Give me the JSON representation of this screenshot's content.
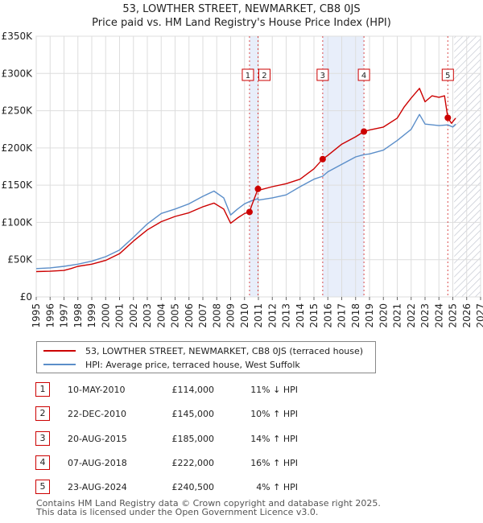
{
  "header": {
    "title_line1": "53, LOWTHER STREET, NEWMARKET, CB8 0JS",
    "title_line2": "Price paid vs. HM Land Registry's House Price Index (HPI)"
  },
  "legend": {
    "property_label": "53, LOWTHER STREET, NEWMARKET, CB8 0JS (terraced house)",
    "hpi_label": "HPI: Average price, terraced house, West Suffolk"
  },
  "sales": [
    {
      "num": "1",
      "date": "10-MAY-2010",
      "price": "£114,000",
      "hpi": "11% ↓ HPI"
    },
    {
      "num": "2",
      "date": "22-DEC-2010",
      "price": "£145,000",
      "hpi": "10% ↑ HPI"
    },
    {
      "num": "3",
      "date": "20-AUG-2015",
      "price": "£185,000",
      "hpi": "14% ↑ HPI"
    },
    {
      "num": "4",
      "date": "07-AUG-2018",
      "price": "£222,000",
      "hpi": "16% ↑ HPI"
    },
    {
      "num": "5",
      "date": "23-AUG-2024",
      "price": "£240,500",
      "hpi": "4% ↑ HPI"
    }
  ],
  "footer": {
    "line1": "Contains HM Land Registry data © Crown copyright and database right 2025.",
    "line2": "This data is licensed under the Open Government Licence v3.0."
  },
  "colors": {
    "property": "#cc0000",
    "hpi": "#5b8ec9",
    "shade": "#e8eefa",
    "grid": "#dddddd"
  },
  "chart_data": {
    "type": "line",
    "title": "Price paid vs. HM Land Registry's House Price Index (HPI)",
    "xlabel": "",
    "ylabel": "",
    "xlim": [
      1995,
      2027
    ],
    "ylim": [
      0,
      350000
    ],
    "x_ticks": [
      1995,
      1996,
      1997,
      1998,
      1999,
      2000,
      2001,
      2002,
      2003,
      2004,
      2005,
      2006,
      2007,
      2008,
      2009,
      2010,
      2011,
      2012,
      2013,
      2014,
      2015,
      2016,
      2017,
      2018,
      2019,
      2020,
      2021,
      2022,
      2023,
      2024,
      2025,
      2026,
      2027
    ],
    "y_ticks": [
      0,
      50000,
      100000,
      150000,
      200000,
      250000,
      300000,
      350000
    ],
    "y_tick_labels": [
      "£0",
      "£50K",
      "£100K",
      "£150K",
      "£200K",
      "£250K",
      "£300K",
      "£350K"
    ],
    "forecast_from": 2025.1,
    "shaded_ranges": [
      [
        2010.36,
        2010.97
      ],
      [
        2015.63,
        2018.6
      ]
    ],
    "sales": [
      {
        "label": "1",
        "x": 2010.36,
        "y": 114000
      },
      {
        "label": "2",
        "x": 2010.97,
        "y": 145000
      },
      {
        "label": "3",
        "x": 2015.63,
        "y": 185000
      },
      {
        "label": "4",
        "x": 2018.6,
        "y": 222000
      },
      {
        "label": "5",
        "x": 2024.64,
        "y": 240500
      }
    ],
    "series": [
      {
        "name": "53, LOWTHER STREET, NEWMARKET, CB8 0JS (terraced house)",
        "color": "#cc0000",
        "x": [
          1995,
          1996,
          1997,
          1997.5,
          1998,
          1999,
          2000,
          2001,
          2002,
          2003,
          2004,
          2005,
          2006,
          2007,
          2007.8,
          2008.5,
          2009.0,
          2009.5,
          2010.0,
          2010.36,
          2010.5,
          2010.97,
          2011,
          2012,
          2013,
          2014,
          2015,
          2015.63,
          2016,
          2017,
          2018,
          2018.6,
          2019,
          2020,
          2021,
          2021.5,
          2022,
          2022.6,
          2023,
          2023.5,
          2024,
          2024.4,
          2024.64,
          2024.9,
          2025.2
        ],
        "y": [
          34000,
          34500,
          35500,
          38000,
          41000,
          44000,
          49000,
          58000,
          75000,
          90000,
          101000,
          108000,
          113000,
          121000,
          126000,
          118000,
          99000,
          106000,
          112000,
          114000,
          122000,
          145000,
          143000,
          148000,
          152000,
          158000,
          172000,
          185000,
          190000,
          205000,
          215000,
          222000,
          224000,
          228000,
          240000,
          255000,
          267000,
          280000,
          262000,
          270000,
          268000,
          270000,
          240500,
          233000,
          240000
        ]
      },
      {
        "name": "HPI: Average price, terraced house, West Suffolk",
        "color": "#5b8ec9",
        "x": [
          1995,
          1996,
          1997,
          1998,
          1999,
          2000,
          2001,
          2002,
          2003,
          2004,
          2005,
          2006,
          2007,
          2007.8,
          2008.5,
          2009.0,
          2009.5,
          2010.0,
          2010.36,
          2010.97,
          2011,
          2012,
          2013,
          2014,
          2015,
          2015.63,
          2016,
          2017,
          2018,
          2018.6,
          2019,
          2020,
          2021,
          2022,
          2022.6,
          2023,
          2024,
          2024.64,
          2025,
          2025.2
        ],
        "y": [
          38000,
          39000,
          41000,
          44000,
          48000,
          54000,
          63000,
          80000,
          98000,
          112000,
          118000,
          125000,
          135000,
          142000,
          133000,
          110000,
          118000,
          125000,
          128000,
          132000,
          130000,
          133000,
          137000,
          148000,
          158000,
          162000,
          168000,
          178000,
          188000,
          191000,
          192000,
          197000,
          210000,
          225000,
          245000,
          232000,
          230000,
          231000,
          228000,
          232000
        ]
      }
    ]
  }
}
